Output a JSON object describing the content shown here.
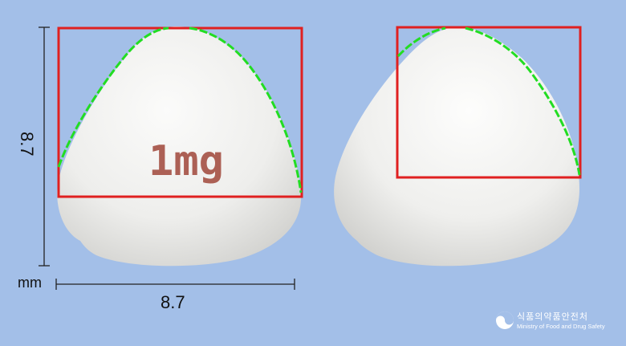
{
  "dimensions": {
    "height_value": "8.7",
    "width_value": "8.7",
    "unit": "mm"
  },
  "pill": {
    "imprint": "1mg",
    "imprint_color": "#a0473a",
    "body_color": "#f1f1ef"
  },
  "overlay_colors": {
    "bounding_box": "#e02020",
    "contour": "#22dd22"
  },
  "brand": {
    "korean": "식품의약품안전처",
    "english": "Ministry of Food and Drug Safety",
    "icon": "mfds-emblem-icon"
  }
}
